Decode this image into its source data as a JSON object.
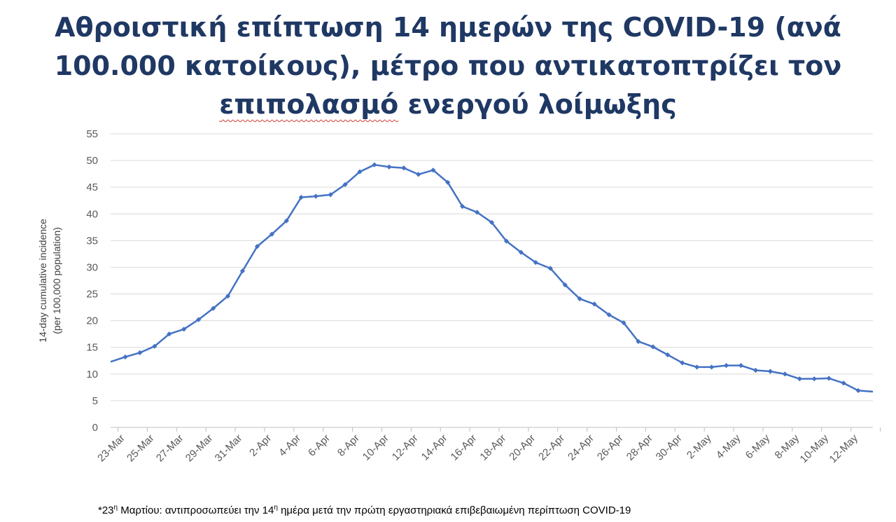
{
  "slide": {
    "title_lines": [
      "Αθροιστική επίπτωση 14 ημερών της COVID-19 (ανά",
      "100.000 κατοίκους), μέτρο που αντικατοπτρίζει τον",
      "επιπολασμό",
      " ενεργού λοίμωξης"
    ],
    "footnote": {
      "pre": "*23",
      "sup1": "η",
      "mid": " Μαρτίου: αντιπροσωπεύει την 14",
      "sup2": "η",
      "post": " ημέρα μετά την πρώτη εργαστηριακά επιβεβαιωμένη περίπτωση COVID-19"
    }
  },
  "chart_data": {
    "type": "line",
    "title": "",
    "ylabel_lines": [
      "14-day cumulative incidence",
      "(per 100,000 population)"
    ],
    "xlabel": "",
    "ylim": [
      0,
      55
    ],
    "yticks": [
      0,
      5,
      10,
      15,
      20,
      25,
      30,
      35,
      40,
      45,
      50,
      55
    ],
    "grid": true,
    "line_color": "#4472c4",
    "x": [
      "22-Mar",
      "23-Mar",
      "24-Mar",
      "25-Mar",
      "26-Mar",
      "27-Mar",
      "28-Mar",
      "29-Mar",
      "30-Mar",
      "31-Mar",
      "1-Apr",
      "2-Apr",
      "3-Apr",
      "4-Apr",
      "5-Apr",
      "6-Apr",
      "7-Apr",
      "8-Apr",
      "9-Apr",
      "10-Apr",
      "11-Apr",
      "12-Apr",
      "13-Apr",
      "14-Apr",
      "15-Apr",
      "16-Apr",
      "17-Apr",
      "18-Apr",
      "19-Apr",
      "20-Apr",
      "21-Apr",
      "22-Apr",
      "23-Apr",
      "24-Apr",
      "25-Apr",
      "26-Apr",
      "27-Apr",
      "28-Apr",
      "29-Apr",
      "30-Apr",
      "1-May",
      "2-May",
      "3-May",
      "4-May",
      "5-May",
      "6-May",
      "7-May",
      "8-May",
      "9-May",
      "10-May",
      "11-May",
      "12-May",
      "13-May"
    ],
    "xtick_labels": [
      "23-Mar",
      "25-Mar",
      "27-Mar",
      "29-Mar",
      "31-Mar",
      "2-Apr",
      "4-Apr",
      "6-Apr",
      "8-Apr",
      "10-Apr",
      "12-Apr",
      "14-Apr",
      "16-Apr",
      "18-Apr",
      "20-Apr",
      "22-Apr",
      "24-Apr",
      "26-Apr",
      "28-Apr",
      "30-Apr",
      "2-May",
      "4-May",
      "6-May",
      "8-May",
      "10-May",
      "12-May"
    ],
    "series": [
      {
        "name": "",
        "values": [
          12.3,
          13.2,
          14.0,
          15.2,
          17.5,
          18.4,
          20.2,
          22.3,
          24.6,
          29.3,
          33.9,
          36.2,
          38.7,
          43.1,
          43.3,
          43.6,
          45.5,
          47.9,
          49.2,
          48.8,
          48.6,
          47.4,
          48.2,
          45.9,
          41.4,
          40.3,
          38.4,
          34.9,
          32.8,
          30.9,
          29.8,
          26.7,
          24.1,
          23.1,
          21.1,
          19.6,
          16.1,
          15.1,
          13.6,
          12.1,
          11.3,
          11.3,
          11.6,
          11.6,
          10.7,
          10.5,
          10.0,
          9.1,
          9.1,
          9.2,
          8.3,
          6.9,
          6.7
        ]
      }
    ]
  }
}
